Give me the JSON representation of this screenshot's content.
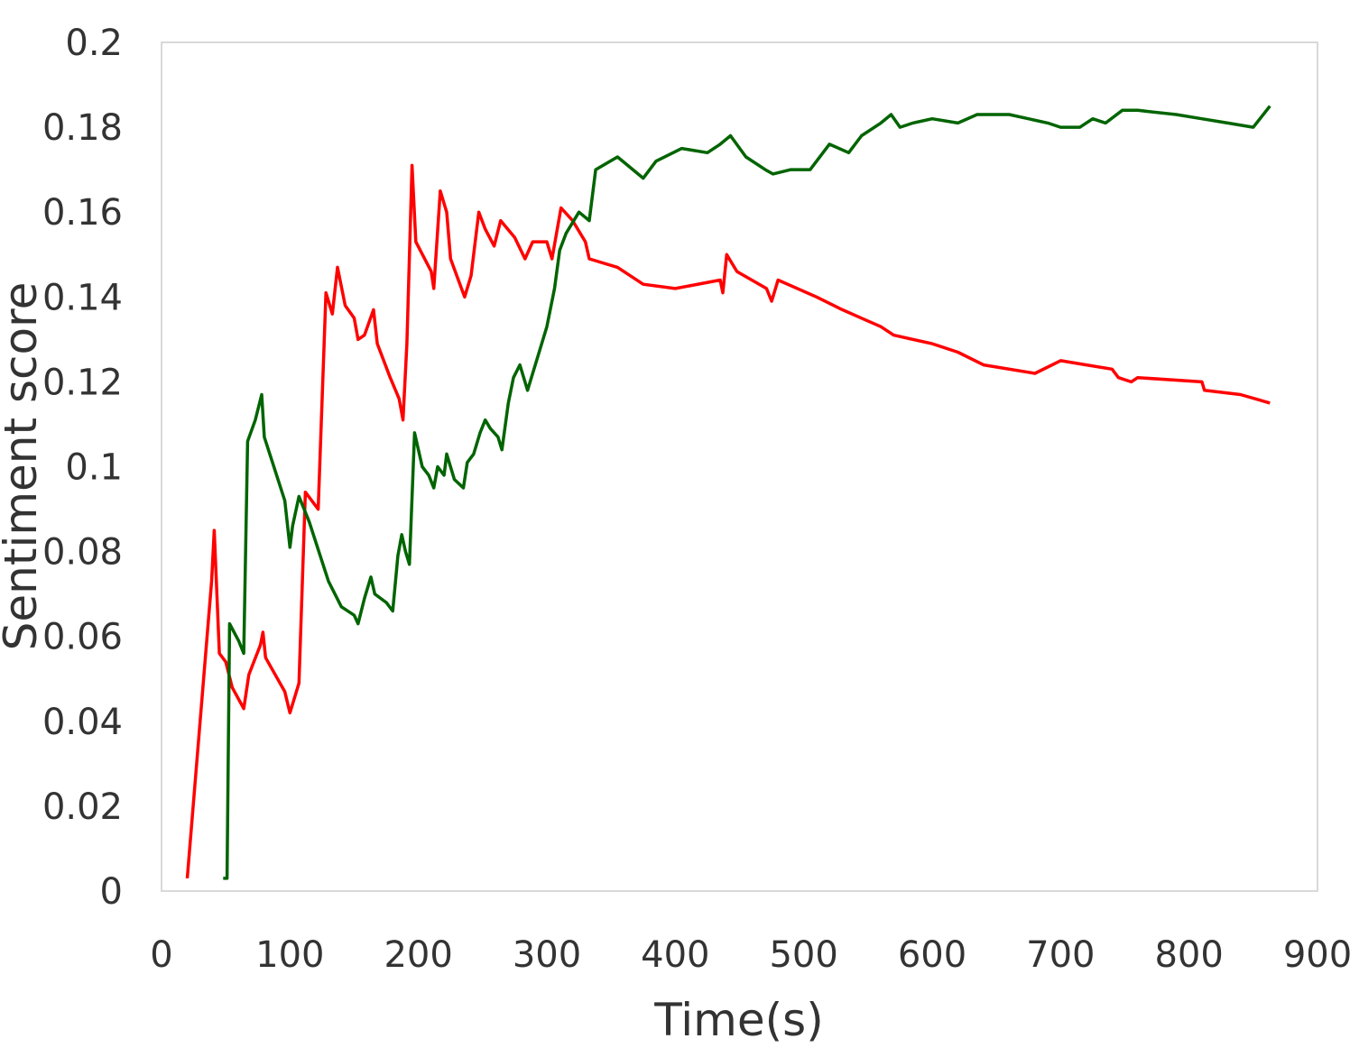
{
  "chart_data": {
    "type": "line",
    "title": "",
    "xlabel": "Time(s)",
    "ylabel": "Sentiment score",
    "xlim": [
      0,
      900
    ],
    "ylim": [
      0,
      0.2
    ],
    "xticks": [
      "0",
      "100",
      "200",
      "300",
      "400",
      "500",
      "600",
      "700",
      "800",
      "900"
    ],
    "yticks": [
      "0",
      "0.02",
      "0.04",
      "0.06",
      "0.08",
      "0.1",
      "0.12",
      "0.14",
      "0.16",
      "0.18",
      "0.2"
    ],
    "grid": false,
    "legend": "none",
    "series": [
      {
        "color": "#ff0000",
        "points": [
          [
            20,
            0.003
          ],
          [
            39,
            0.073
          ],
          [
            41,
            0.085
          ],
          [
            45,
            0.056
          ],
          [
            50,
            0.054
          ],
          [
            55,
            0.048
          ],
          [
            64,
            0.043
          ],
          [
            68,
            0.051
          ],
          [
            77,
            0.058
          ],
          [
            79,
            0.061
          ],
          [
            81,
            0.055
          ],
          [
            96,
            0.047
          ],
          [
            100,
            0.042
          ],
          [
            107,
            0.049
          ],
          [
            112,
            0.094
          ],
          [
            122,
            0.09
          ],
          [
            128,
            0.141
          ],
          [
            133,
            0.136
          ],
          [
            137,
            0.147
          ],
          [
            143,
            0.138
          ],
          [
            150,
            0.135
          ],
          [
            153,
            0.13
          ],
          [
            158,
            0.131
          ],
          [
            165,
            0.137
          ],
          [
            168,
            0.129
          ],
          [
            178,
            0.121
          ],
          [
            185,
            0.116
          ],
          [
            188,
            0.111
          ],
          [
            191,
            0.129
          ],
          [
            195,
            0.171
          ],
          [
            198,
            0.153
          ],
          [
            210,
            0.146
          ],
          [
            212,
            0.142
          ],
          [
            217,
            0.165
          ],
          [
            222,
            0.16
          ],
          [
            225,
            0.149
          ],
          [
            236,
            0.14
          ],
          [
            241,
            0.145
          ],
          [
            247,
            0.16
          ],
          [
            252,
            0.156
          ],
          [
            259,
            0.152
          ],
          [
            264,
            0.158
          ],
          [
            275,
            0.154
          ],
          [
            283,
            0.149
          ],
          [
            289,
            0.153
          ],
          [
            300,
            0.153
          ],
          [
            304,
            0.149
          ],
          [
            311,
            0.161
          ],
          [
            320,
            0.158
          ],
          [
            330,
            0.153
          ],
          [
            333,
            0.149
          ],
          [
            355,
            0.147
          ],
          [
            375,
            0.143
          ],
          [
            400,
            0.142
          ],
          [
            435,
            0.144
          ],
          [
            437,
            0.141
          ],
          [
            440,
            0.15
          ],
          [
            448,
            0.146
          ],
          [
            471,
            0.142
          ],
          [
            475,
            0.139
          ],
          [
            480,
            0.144
          ],
          [
            510,
            0.14
          ],
          [
            530,
            0.137
          ],
          [
            545,
            0.135
          ],
          [
            560,
            0.133
          ],
          [
            570,
            0.131
          ],
          [
            600,
            0.129
          ],
          [
            620,
            0.127
          ],
          [
            640,
            0.124
          ],
          [
            680,
            0.122
          ],
          [
            700,
            0.125
          ],
          [
            720,
            0.124
          ],
          [
            740,
            0.123
          ],
          [
            745,
            0.121
          ],
          [
            755,
            0.12
          ],
          [
            760,
            0.121
          ],
          [
            810,
            0.12
          ],
          [
            812,
            0.118
          ],
          [
            840,
            0.117
          ],
          [
            863,
            0.115
          ]
        ]
      },
      {
        "color": "#006400",
        "points": [
          [
            48,
            0.003
          ],
          [
            51,
            0.003
          ],
          [
            53,
            0.063
          ],
          [
            60,
            0.059
          ],
          [
            64,
            0.056
          ],
          [
            67,
            0.106
          ],
          [
            73,
            0.111
          ],
          [
            78,
            0.117
          ],
          [
            80,
            0.107
          ],
          [
            96,
            0.092
          ],
          [
            100,
            0.081
          ],
          [
            102,
            0.086
          ],
          [
            107,
            0.093
          ],
          [
            115,
            0.087
          ],
          [
            130,
            0.073
          ],
          [
            140,
            0.067
          ],
          [
            150,
            0.065
          ],
          [
            153,
            0.063
          ],
          [
            158,
            0.069
          ],
          [
            163,
            0.074
          ],
          [
            166,
            0.07
          ],
          [
            175,
            0.068
          ],
          [
            180,
            0.066
          ],
          [
            184,
            0.079
          ],
          [
            187,
            0.084
          ],
          [
            190,
            0.08
          ],
          [
            193,
            0.077
          ],
          [
            197,
            0.108
          ],
          [
            203,
            0.1
          ],
          [
            208,
            0.098
          ],
          [
            212,
            0.095
          ],
          [
            215,
            0.1
          ],
          [
            220,
            0.098
          ],
          [
            222,
            0.103
          ],
          [
            228,
            0.097
          ],
          [
            235,
            0.095
          ],
          [
            238,
            0.101
          ],
          [
            243,
            0.103
          ],
          [
            248,
            0.108
          ],
          [
            252,
            0.111
          ],
          [
            256,
            0.109
          ],
          [
            262,
            0.107
          ],
          [
            265,
            0.104
          ],
          [
            270,
            0.115
          ],
          [
            274,
            0.121
          ],
          [
            279,
            0.124
          ],
          [
            285,
            0.118
          ],
          [
            292,
            0.125
          ],
          [
            300,
            0.133
          ],
          [
            306,
            0.142
          ],
          [
            310,
            0.151
          ],
          [
            315,
            0.155
          ],
          [
            325,
            0.16
          ],
          [
            333,
            0.158
          ],
          [
            338,
            0.17
          ],
          [
            355,
            0.173
          ],
          [
            375,
            0.168
          ],
          [
            385,
            0.172
          ],
          [
            405,
            0.175
          ],
          [
            425,
            0.174
          ],
          [
            435,
            0.176
          ],
          [
            443,
            0.178
          ],
          [
            455,
            0.173
          ],
          [
            470,
            0.17
          ],
          [
            476,
            0.169
          ],
          [
            490,
            0.17
          ],
          [
            505,
            0.17
          ],
          [
            520,
            0.176
          ],
          [
            535,
            0.174
          ],
          [
            545,
            0.178
          ],
          [
            560,
            0.181
          ],
          [
            568,
            0.183
          ],
          [
            575,
            0.18
          ],
          [
            585,
            0.181
          ],
          [
            600,
            0.182
          ],
          [
            620,
            0.181
          ],
          [
            635,
            0.183
          ],
          [
            660,
            0.183
          ],
          [
            690,
            0.181
          ],
          [
            700,
            0.18
          ],
          [
            715,
            0.18
          ],
          [
            725,
            0.182
          ],
          [
            735,
            0.181
          ],
          [
            748,
            0.184
          ],
          [
            760,
            0.184
          ],
          [
            790,
            0.183
          ],
          [
            810,
            0.182
          ],
          [
            830,
            0.181
          ],
          [
            850,
            0.18
          ],
          [
            863,
            0.185
          ]
        ]
      }
    ]
  }
}
